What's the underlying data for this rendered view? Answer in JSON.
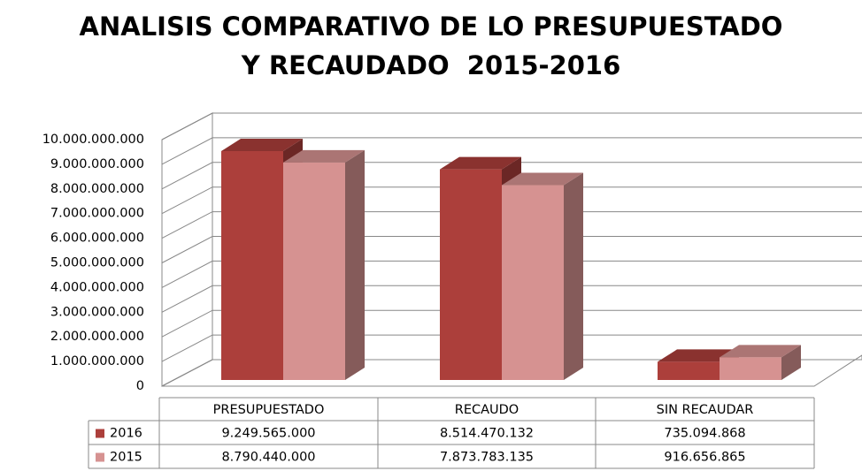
{
  "chart_data": {
    "type": "bar3d",
    "title": "ANALISIS COMPARATIVO DE LO PRESUPUESTADO\nY RECAUDADO  2015-2016",
    "categories": [
      "PRESUPUESTADO",
      "RECAUDO",
      "SIN RECAUDAR"
    ],
    "series": [
      {
        "name": "2016",
        "color": "#ac3f3b",
        "values": [
          9249565000,
          8514470132,
          735094868
        ],
        "value_labels": [
          "9.249.565.000",
          "8.514.470.132",
          "735.094.868"
        ]
      },
      {
        "name": "2015",
        "color": "#d69291",
        "values": [
          8790440000,
          7873783135,
          916656865
        ],
        "value_labels": [
          "8.790.440.000",
          "7.873.783.135",
          "916.656.865"
        ]
      }
    ],
    "ylim": [
      0,
      10000000000
    ],
    "yticks": [
      0,
      {
        "value": 1000000000,
        "label": "1.000.000.000"
      },
      {
        "value": 2000000000,
        "label": "2.000.000.000"
      },
      {
        "value": 3000000000,
        "label": "3.000.000.000"
      },
      {
        "value": 4000000000,
        "label": "4.000.000.000"
      },
      {
        "value": 5000000000,
        "label": "5.000.000.000"
      },
      {
        "value": 6000000000,
        "label": "6.000.000.000"
      },
      {
        "value": 7000000000,
        "label": "7.000.000.000"
      },
      {
        "value": 8000000000,
        "label": "8.000.000.000"
      },
      {
        "value": 9000000000,
        "label": "9.000.000.000"
      },
      {
        "value": 10000000000,
        "label": "10.000.000.000"
      }
    ],
    "grid": true
  }
}
